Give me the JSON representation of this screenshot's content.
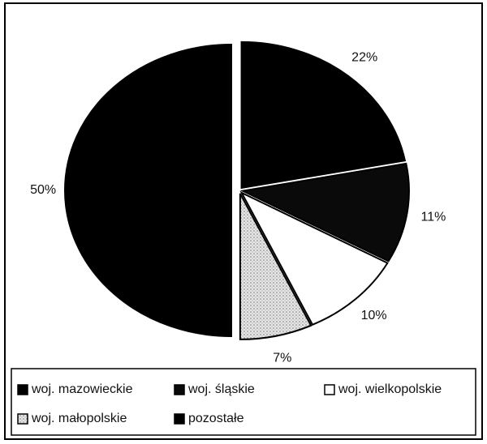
{
  "chart_data": {
    "type": "pie",
    "categories": [
      "woj. mazowieckie",
      "woj. śląskie",
      "woj. wielkopolskie",
      "woj. małopolskie",
      "pozostałe"
    ],
    "values": [
      22,
      11,
      10,
      7,
      50
    ],
    "value_labels": [
      "22%",
      "11%",
      "10%",
      "7%",
      "50%"
    ],
    "colors": [
      "#000000",
      "#0a0a0a",
      "#ffffff",
      "#cfcfcf",
      "#000000"
    ]
  }
}
